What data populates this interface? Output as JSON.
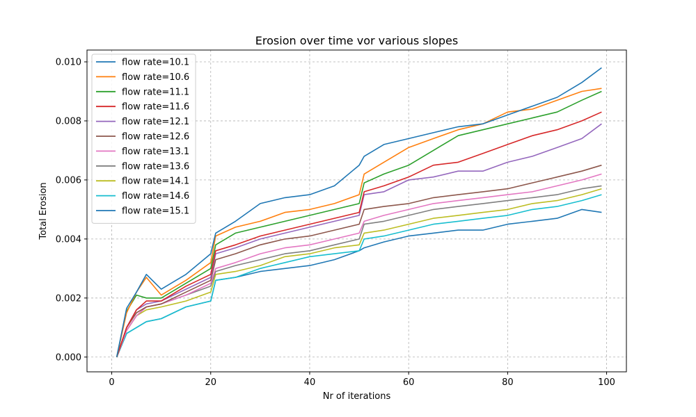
{
  "chart_data": {
    "type": "line",
    "title": "Erosion over time vor various slopes",
    "xlabel": "Nr of iterations",
    "ylabel": "Total Erosion",
    "xlim": [
      -5,
      104
    ],
    "ylim": [
      -0.0005,
      0.0104
    ],
    "x_ticks": [
      0,
      20,
      40,
      60,
      80,
      100
    ],
    "y_ticks": [
      0.0,
      0.002,
      0.004,
      0.006,
      0.008,
      0.01
    ],
    "x_tick_labels": [
      "0",
      "20",
      "40",
      "60",
      "80",
      "100"
    ],
    "y_tick_labels": [
      "0.000",
      "0.002",
      "0.004",
      "0.006",
      "0.008",
      "0.010"
    ],
    "grid": true,
    "legend_position": "top-left",
    "x": [
      1,
      3,
      5,
      7,
      10,
      15,
      20,
      21,
      25,
      30,
      35,
      40,
      45,
      50,
      51,
      55,
      60,
      65,
      70,
      75,
      80,
      85,
      90,
      95,
      99
    ],
    "series": [
      {
        "name": "flow rate=10.1",
        "color": "#1f77b4",
        "values": [
          0.0,
          0.00165,
          0.0022,
          0.0028,
          0.0023,
          0.0028,
          0.0035,
          0.0042,
          0.0046,
          0.0052,
          0.0054,
          0.0055,
          0.0058,
          0.0065,
          0.0068,
          0.0072,
          0.0074,
          0.0076,
          0.0078,
          0.0079,
          0.0082,
          0.0085,
          0.0088,
          0.0093,
          0.0098
        ]
      },
      {
        "name": "flow rate=10.6",
        "color": "#ff7f0e",
        "values": [
          0.0,
          0.0015,
          0.0022,
          0.0027,
          0.0021,
          0.0026,
          0.0032,
          0.0041,
          0.0044,
          0.0046,
          0.0049,
          0.005,
          0.0052,
          0.0055,
          0.0062,
          0.0066,
          0.0071,
          0.0074,
          0.0077,
          0.0079,
          0.0083,
          0.0084,
          0.0087,
          0.009,
          0.0091
        ]
      },
      {
        "name": "flow rate=11.1",
        "color": "#2ca02c",
        "values": [
          0.0,
          0.00155,
          0.0021,
          0.002,
          0.002,
          0.0025,
          0.003,
          0.0038,
          0.0042,
          0.0044,
          0.0046,
          0.0048,
          0.005,
          0.0052,
          0.0059,
          0.0062,
          0.0065,
          0.007,
          0.0075,
          0.0077,
          0.0079,
          0.0081,
          0.0083,
          0.0087,
          0.009
        ]
      },
      {
        "name": "flow rate=11.6",
        "color": "#d62728",
        "values": [
          0.0,
          0.001,
          0.0016,
          0.0019,
          0.0019,
          0.0024,
          0.0028,
          0.0036,
          0.0038,
          0.0041,
          0.0043,
          0.0045,
          0.0047,
          0.0049,
          0.0056,
          0.0058,
          0.0061,
          0.0065,
          0.0066,
          0.0069,
          0.0072,
          0.0075,
          0.0077,
          0.008,
          0.0083
        ]
      },
      {
        "name": "flow rate=12.1",
        "color": "#9467bd",
        "values": [
          0.0,
          0.001,
          0.0016,
          0.0018,
          0.0019,
          0.0023,
          0.0027,
          0.0035,
          0.0037,
          0.004,
          0.0042,
          0.0044,
          0.0046,
          0.0048,
          0.0055,
          0.0056,
          0.006,
          0.0061,
          0.0063,
          0.0063,
          0.0066,
          0.0068,
          0.0071,
          0.0074,
          0.0079
        ]
      },
      {
        "name": "flow rate=12.6",
        "color": "#8c564b",
        "values": [
          0.0,
          0.001,
          0.0015,
          0.0017,
          0.0018,
          0.0022,
          0.0026,
          0.0033,
          0.0035,
          0.0038,
          0.004,
          0.0041,
          0.0043,
          0.0045,
          0.005,
          0.0051,
          0.0052,
          0.0054,
          0.0055,
          0.0056,
          0.0057,
          0.0059,
          0.0061,
          0.0063,
          0.0065
        ]
      },
      {
        "name": "flow rate=13.1",
        "color": "#e377c2",
        "values": [
          0.0,
          0.0009,
          0.0014,
          0.0017,
          0.0018,
          0.0021,
          0.0025,
          0.003,
          0.0032,
          0.0035,
          0.0037,
          0.0038,
          0.004,
          0.0042,
          0.0046,
          0.0048,
          0.005,
          0.0052,
          0.0053,
          0.0054,
          0.0055,
          0.0056,
          0.0058,
          0.006,
          0.0062
        ]
      },
      {
        "name": "flow rate=13.6",
        "color": "#7f7f7f",
        "values": [
          0.0,
          0.0009,
          0.0014,
          0.0017,
          0.0018,
          0.0021,
          0.0024,
          0.0029,
          0.0031,
          0.0033,
          0.0035,
          0.0036,
          0.0038,
          0.004,
          0.0045,
          0.0046,
          0.0048,
          0.005,
          0.0051,
          0.0052,
          0.0053,
          0.0054,
          0.0055,
          0.0057,
          0.0058
        ]
      },
      {
        "name": "flow rate=14.1",
        "color": "#bcbd22",
        "values": [
          0.0,
          0.0009,
          0.0014,
          0.0016,
          0.0017,
          0.0019,
          0.0022,
          0.0028,
          0.0029,
          0.0031,
          0.0034,
          0.0035,
          0.0037,
          0.0038,
          0.0042,
          0.0043,
          0.0045,
          0.0047,
          0.0048,
          0.0049,
          0.005,
          0.0052,
          0.0053,
          0.0055,
          0.0057
        ]
      },
      {
        "name": "flow rate=14.6",
        "color": "#17becf",
        "values": [
          0.0,
          0.0008,
          0.001,
          0.0012,
          0.0013,
          0.0017,
          0.0019,
          0.0026,
          0.0027,
          0.003,
          0.0032,
          0.0034,
          0.0035,
          0.0036,
          0.004,
          0.0041,
          0.0043,
          0.0045,
          0.0046,
          0.0047,
          0.0048,
          0.005,
          0.0051,
          0.0053,
          0.0055
        ]
      },
      {
        "name": "flow rate=15.1",
        "color": "#1f77b4",
        "values": [
          0.0,
          0.0008,
          0.001,
          0.0012,
          0.0013,
          0.0017,
          0.0019,
          0.0026,
          0.0027,
          0.0029,
          0.003,
          0.0031,
          0.0033,
          0.0036,
          0.0037,
          0.0039,
          0.0041,
          0.0042,
          0.0043,
          0.0043,
          0.0045,
          0.0046,
          0.0047,
          0.005,
          0.0049
        ]
      }
    ]
  }
}
